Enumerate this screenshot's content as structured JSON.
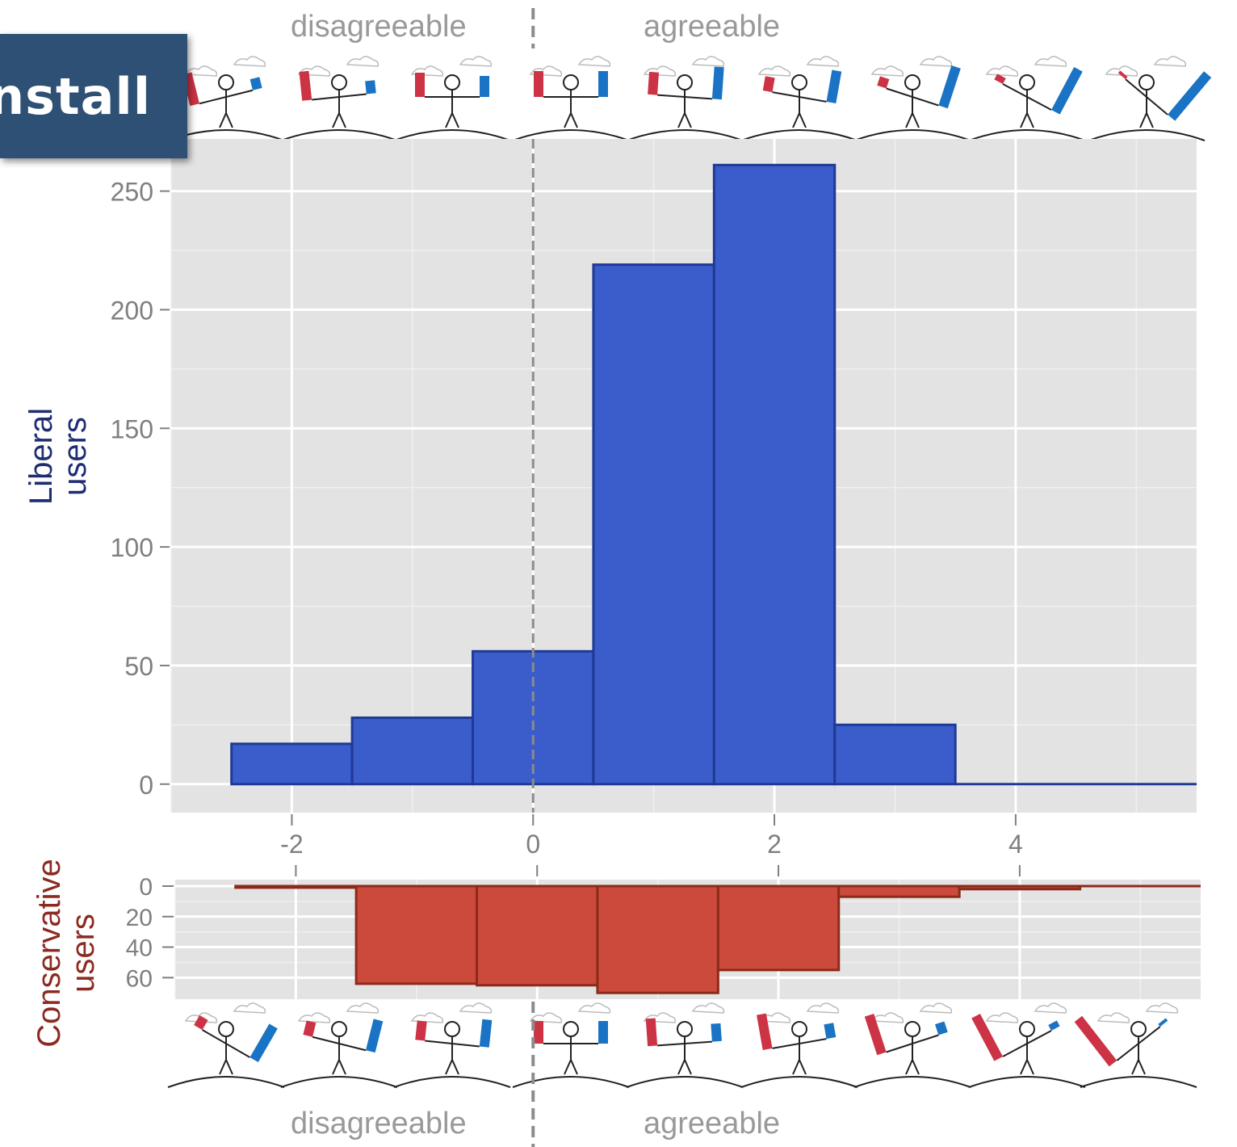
{
  "install_banner": {
    "label": "nstall"
  },
  "top_strip": {
    "left_label": "disagreeable",
    "right_label": "agreeable"
  },
  "bottom_strip": {
    "left_label": "disagreeable",
    "right_label": "agreeable"
  },
  "colors": {
    "liberal_fill": "#3b5dcb",
    "liberal_stroke": "#1f3a94",
    "conservative_fill": "#cc4a3b",
    "conservative_stroke": "#8c2a1a",
    "panel_bg": "#e3e3e3",
    "divider": "#8c8c8c",
    "liberal_label": "#1e2d72",
    "conservative_label": "#8c2a22",
    "banner_bg": "#2d5074"
  },
  "icons": [
    "stick-figure-seesaw-icon",
    "red-bar-icon",
    "blue-bar-icon",
    "cloud-icon"
  ],
  "chart_data": [
    {
      "type": "bar",
      "name": "liberal",
      "ylabel": [
        "Liberal",
        "users"
      ],
      "xlim": [
        -3.0,
        5.5
      ],
      "ylim": [
        -12,
        272
      ],
      "x_ticks": [
        -2,
        0,
        2,
        4
      ],
      "y_ticks": [
        0,
        50,
        100,
        150,
        200,
        250
      ],
      "grid": true,
      "bins": [
        {
          "x0": -2.5,
          "x1": -1.5,
          "value": 17
        },
        {
          "x0": -1.5,
          "x1": -0.5,
          "value": 28
        },
        {
          "x0": -0.5,
          "x1": 0.5,
          "value": 56
        },
        {
          "x0": 0.5,
          "x1": 1.5,
          "value": 219
        },
        {
          "x0": 1.5,
          "x1": 2.5,
          "value": 261
        },
        {
          "x0": 2.5,
          "x1": 3.5,
          "value": 25
        },
        {
          "x0": 3.5,
          "x1": 4.5,
          "value": 0
        },
        {
          "x0": 4.5,
          "x1": 5.5,
          "value": 0
        }
      ],
      "reference_line_x": 0
    },
    {
      "type": "bar",
      "name": "conservative",
      "ylabel": [
        "Conservative",
        "users"
      ],
      "orientation": "downward",
      "xlim": [
        -3.0,
        5.5
      ],
      "ylim": [
        0,
        72
      ],
      "y_ticks": [
        0,
        20,
        40,
        60
      ],
      "grid": true,
      "bins": [
        {
          "x0": -2.5,
          "x1": -1.5,
          "value": 1
        },
        {
          "x0": -1.5,
          "x1": -0.5,
          "value": 64
        },
        {
          "x0": -0.5,
          "x1": 0.5,
          "value": 65
        },
        {
          "x0": 0.5,
          "x1": 1.5,
          "value": 70
        },
        {
          "x0": 1.5,
          "x1": 2.5,
          "value": 55
        },
        {
          "x0": 2.5,
          "x1": 3.5,
          "value": 7
        },
        {
          "x0": 3.5,
          "x1": 4.5,
          "value": 2
        },
        {
          "x0": 4.5,
          "x1": 5.5,
          "value": 0
        }
      ]
    }
  ]
}
